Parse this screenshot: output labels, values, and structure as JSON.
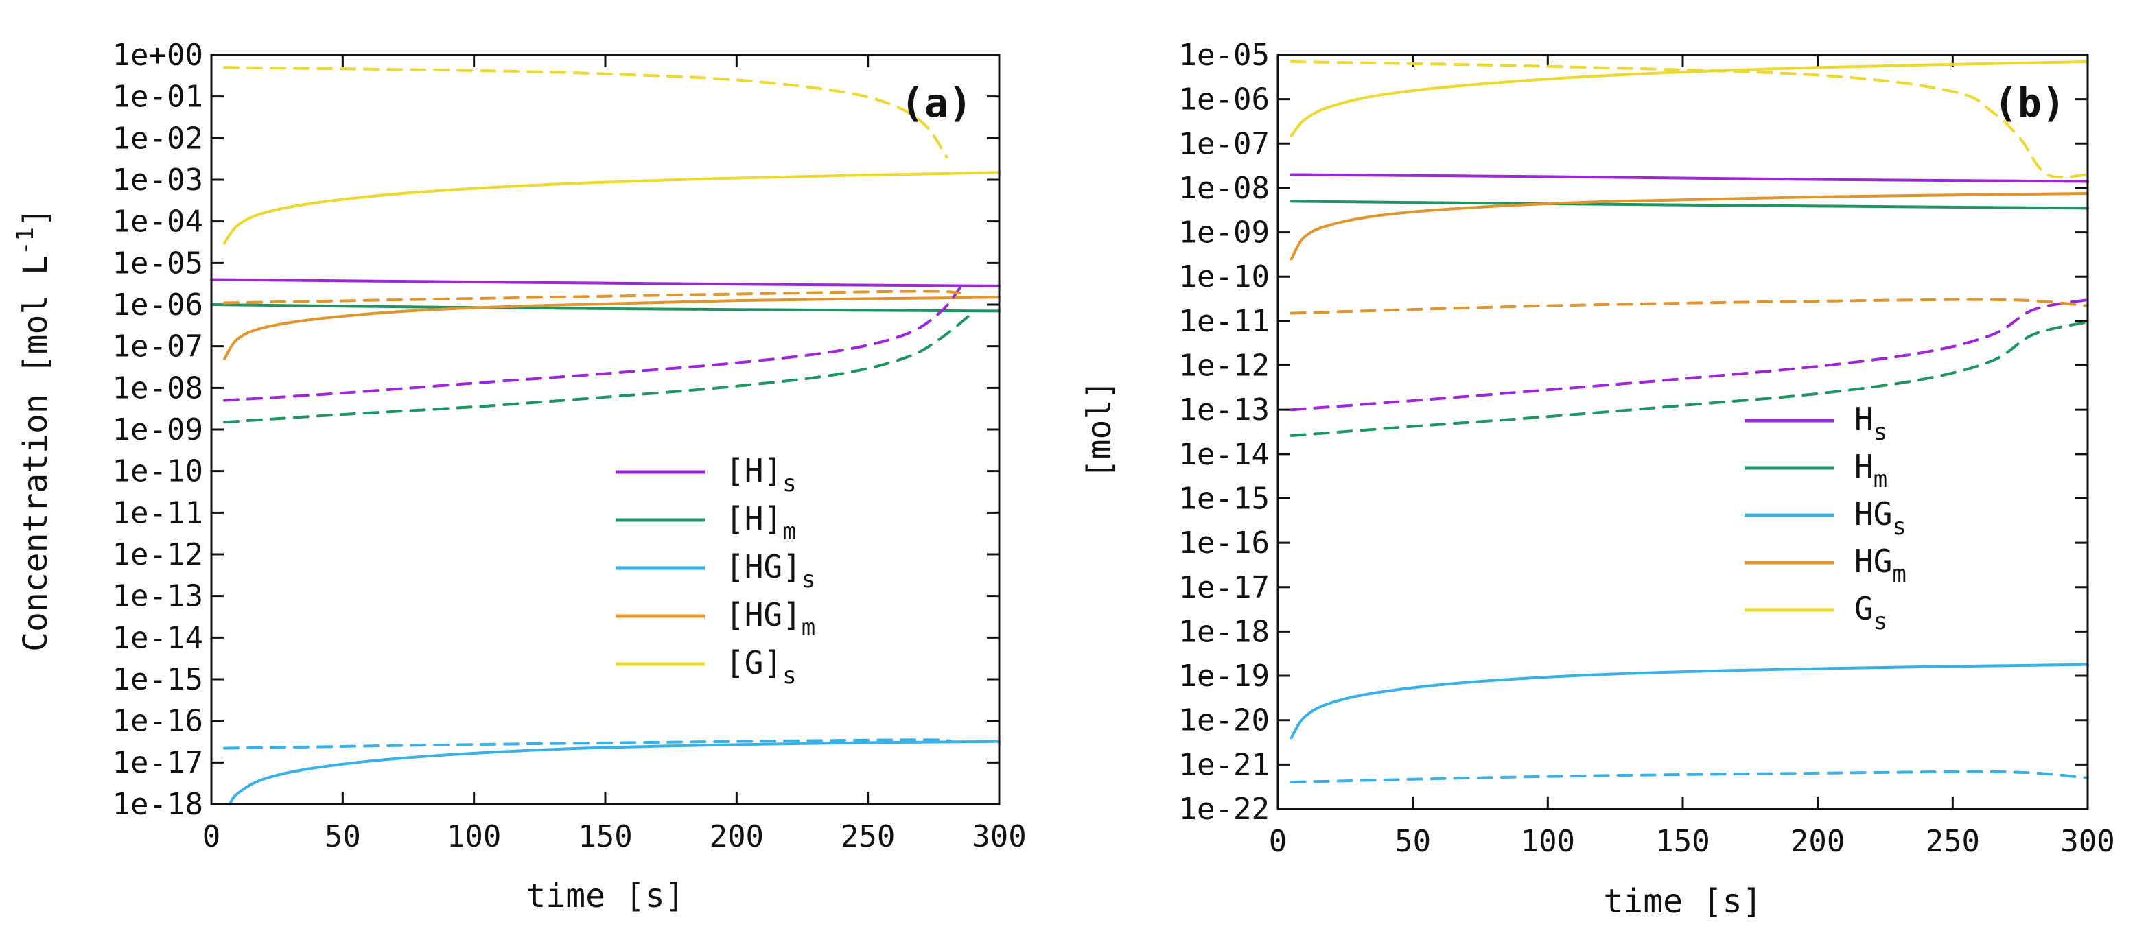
{
  "colors": {
    "purple": "#9a28d6",
    "green": "#1e9463",
    "blue": "#39b1e6",
    "orange": "#e0962e",
    "yellow": "#ebd830"
  },
  "chart_data": [
    {
      "id": "a",
      "type": "line",
      "panel_label": "(a)",
      "xlabel": "time [s]",
      "ylabel": "Concentration [mol L",
      "ylabel_sup": "-1",
      "ylabel_end": "]",
      "yscale": "log",
      "xlim": [
        0,
        300
      ],
      "ylim_exp": [
        -18,
        0
      ],
      "x_ticks": [
        "0",
        "50",
        "100",
        "150",
        "200",
        "250",
        "300"
      ],
      "y_ticks": [
        "1e+00",
        "1e-01",
        "1e-02",
        "1e-03",
        "1e-04",
        "1e-05",
        "1e-06",
        "1e-07",
        "1e-08",
        "1e-09",
        "1e-10",
        "1e-11",
        "1e-12",
        "1e-13",
        "1e-14",
        "1e-15",
        "1e-16",
        "1e-17",
        "1e-18"
      ],
      "legend": [
        {
          "base": "[H]",
          "sub": "s",
          "color_key": "purple"
        },
        {
          "base": "[H]",
          "sub": "m",
          "color_key": "green"
        },
        {
          "base": "[HG]",
          "sub": "s",
          "color_key": "blue"
        },
        {
          "base": "[HG]",
          "sub": "m",
          "color_key": "orange"
        },
        {
          "base": "[G]",
          "sub": "s",
          "color_key": "yellow"
        }
      ],
      "series": [
        {
          "name": "[H]s solid",
          "color_key": "purple",
          "style": "solid",
          "x": [
            0,
            100,
            200,
            300
          ],
          "y": [
            4e-06,
            3.5e-06,
            3.1e-06,
            2.8e-06
          ]
        },
        {
          "name": "[H]m solid",
          "color_key": "green",
          "style": "solid",
          "x": [
            0,
            100,
            200,
            300
          ],
          "y": [
            1e-06,
            8.5e-07,
            7.6e-07,
            7e-07
          ]
        },
        {
          "name": "[HG]s solid",
          "color_key": "blue",
          "style": "solid",
          "x": [
            7,
            10,
            20,
            40,
            75,
            125,
            175,
            250,
            300
          ],
          "y": [
            1e-18,
            1.8e-18,
            4e-18,
            7.5e-18,
            1.3e-17,
            2e-17,
            2.5e-17,
            3e-17,
            3.2e-17
          ]
        },
        {
          "name": "[HG]m solid",
          "color_key": "orange",
          "style": "solid",
          "x": [
            5,
            10,
            20,
            40,
            75,
            125,
            200,
            300
          ],
          "y": [
            5e-08,
            1.5e-07,
            2.8e-07,
            4.5e-07,
            7e-07,
            9.5e-07,
            1.25e-06,
            1.5e-06
          ]
        },
        {
          "name": "[G]s solid",
          "color_key": "yellow",
          "style": "solid",
          "x": [
            5,
            10,
            20,
            40,
            75,
            125,
            200,
            300
          ],
          "y": [
            3e-05,
            8e-05,
            0.00016,
            0.00028,
            0.00048,
            0.00075,
            0.0011,
            0.0015
          ]
        },
        {
          "name": "[H]s dashed",
          "color_key": "purple",
          "style": "dashed",
          "x": [
            5,
            50,
            100,
            150,
            200,
            240,
            265,
            278,
            285
          ],
          "y": [
            5e-09,
            7.5e-09,
            1.3e-08,
            2.2e-08,
            4e-08,
            8e-08,
            2e-07,
            7e-07,
            2.5e-06
          ]
        },
        {
          "name": "[H]m dashed",
          "color_key": "green",
          "style": "dashed",
          "x": [
            5,
            50,
            100,
            150,
            200,
            240,
            265,
            278,
            290
          ],
          "y": [
            1.5e-09,
            2.3e-09,
            3.5e-09,
            6e-09,
            1.1e-08,
            2.2e-08,
            5.5e-08,
            1.6e-07,
            6.5e-07
          ]
        },
        {
          "name": "[HG]s dashed",
          "color_key": "blue",
          "style": "dashed",
          "x": [
            5,
            100,
            200,
            270,
            282
          ],
          "y": [
            2.2e-17,
            2.7e-17,
            3.2e-17,
            3.5e-17,
            3.2e-17
          ]
        },
        {
          "name": "[HG]m dashed",
          "color_key": "orange",
          "style": "dashed",
          "x": [
            5,
            100,
            200,
            270,
            285
          ],
          "y": [
            1.1e-06,
            1.4e-06,
            1.8e-06,
            2.1e-06,
            1.9e-06
          ]
        },
        {
          "name": "[G]s dashed",
          "color_key": "yellow",
          "style": "dashed",
          "x": [
            5,
            100,
            150,
            200,
            240,
            260,
            272,
            280
          ],
          "y": [
            0.5,
            0.42,
            0.35,
            0.25,
            0.13,
            0.06,
            0.02,
            0.0035
          ]
        }
      ]
    },
    {
      "id": "b",
      "type": "line",
      "panel_label": "(b)",
      "xlabel": "time [s]",
      "ylabel": "[mol]",
      "ylabel_sup": "",
      "ylabel_end": "",
      "yscale": "log",
      "xlim": [
        0,
        300
      ],
      "ylim_exp": [
        -22,
        -5
      ],
      "x_ticks": [
        "0",
        "50",
        "100",
        "150",
        "200",
        "250",
        "300"
      ],
      "y_ticks": [
        "1e-05",
        "1e-06",
        "1e-07",
        "1e-08",
        "1e-09",
        "1e-10",
        "1e-11",
        "1e-12",
        "1e-13",
        "1e-14",
        "1e-15",
        "1e-16",
        "1e-17",
        "1e-18",
        "1e-19",
        "1e-20",
        "1e-21",
        "1e-22"
      ],
      "legend": [
        {
          "base": "H",
          "sub": "s",
          "color_key": "purple"
        },
        {
          "base": "H",
          "sub": "m",
          "color_key": "green"
        },
        {
          "base": "HG",
          "sub": "s",
          "color_key": "blue"
        },
        {
          "base": "HG",
          "sub": "m",
          "color_key": "orange"
        },
        {
          "base": "G",
          "sub": "s",
          "color_key": "yellow"
        }
      ],
      "series": [
        {
          "name": "Hs solid",
          "color_key": "purple",
          "style": "solid",
          "x": [
            5,
            100,
            200,
            300
          ],
          "y": [
            2e-08,
            1.8e-08,
            1.55e-08,
            1.4e-08
          ]
        },
        {
          "name": "Hm solid",
          "color_key": "green",
          "style": "solid",
          "x": [
            5,
            100,
            200,
            300
          ],
          "y": [
            5e-09,
            4.4e-09,
            3.9e-09,
            3.5e-09
          ]
        },
        {
          "name": "HGs solid",
          "color_key": "blue",
          "style": "solid",
          "x": [
            5,
            10,
            20,
            40,
            75,
            125,
            200,
            300
          ],
          "y": [
            4e-21,
            1.2e-20,
            2.5e-20,
            4.5e-20,
            7.5e-20,
            1.1e-19,
            1.45e-19,
            1.8e-19
          ]
        },
        {
          "name": "HGm solid",
          "color_key": "orange",
          "style": "solid",
          "x": [
            5,
            10,
            20,
            40,
            75,
            125,
            200,
            300
          ],
          "y": [
            2.5e-10,
            8e-10,
            1.5e-09,
            2.5e-09,
            3.7e-09,
            5e-09,
            6.3e-09,
            7.5e-09
          ]
        },
        {
          "name": "Gs solid",
          "color_key": "yellow",
          "style": "solid",
          "x": [
            5,
            10,
            20,
            40,
            75,
            125,
            200,
            300
          ],
          "y": [
            1.5e-07,
            3.5e-07,
            7e-07,
            1.3e-06,
            2.2e-06,
            3.5e-06,
            5.2e-06,
            7e-06
          ]
        },
        {
          "name": "Hs dashed",
          "color_key": "purple",
          "style": "dashed",
          "x": [
            5,
            50,
            100,
            150,
            200,
            240,
            265,
            280,
            300
          ],
          "y": [
            1e-13,
            1.6e-13,
            2.8e-13,
            5e-13,
            9.5e-13,
            2e-12,
            5e-12,
            1.8e-11,
            3e-11
          ]
        },
        {
          "name": "Hm dashed",
          "color_key": "green",
          "style": "dashed",
          "x": [
            5,
            50,
            100,
            150,
            200,
            240,
            265,
            280,
            300
          ],
          "y": [
            2.6e-14,
            4.2e-14,
            7e-14,
            1.25e-13,
            2.3e-13,
            5e-13,
            1.3e-12,
            5e-12,
            9.5e-12
          ]
        },
        {
          "name": "HGs dashed",
          "color_key": "blue",
          "style": "dashed",
          "x": [
            5,
            100,
            200,
            270,
            300
          ],
          "y": [
            4e-22,
            5.4e-22,
            6.4e-22,
            6.8e-22,
            5e-22
          ]
        },
        {
          "name": "HGm dashed",
          "color_key": "orange",
          "style": "dashed",
          "x": [
            5,
            100,
            200,
            270,
            300
          ],
          "y": [
            1.5e-11,
            2.2e-11,
            2.8e-11,
            3e-11,
            2.2e-11
          ]
        },
        {
          "name": "Gs dashed",
          "color_key": "yellow",
          "style": "dashed",
          "x": [
            5,
            100,
            200,
            250,
            265,
            275,
            285,
            300
          ],
          "y": [
            7e-06,
            5.5e-06,
            3.5e-06,
            1.5e-06,
            5e-07,
            1.3e-07,
            2e-08,
            2e-08
          ]
        }
      ]
    }
  ]
}
